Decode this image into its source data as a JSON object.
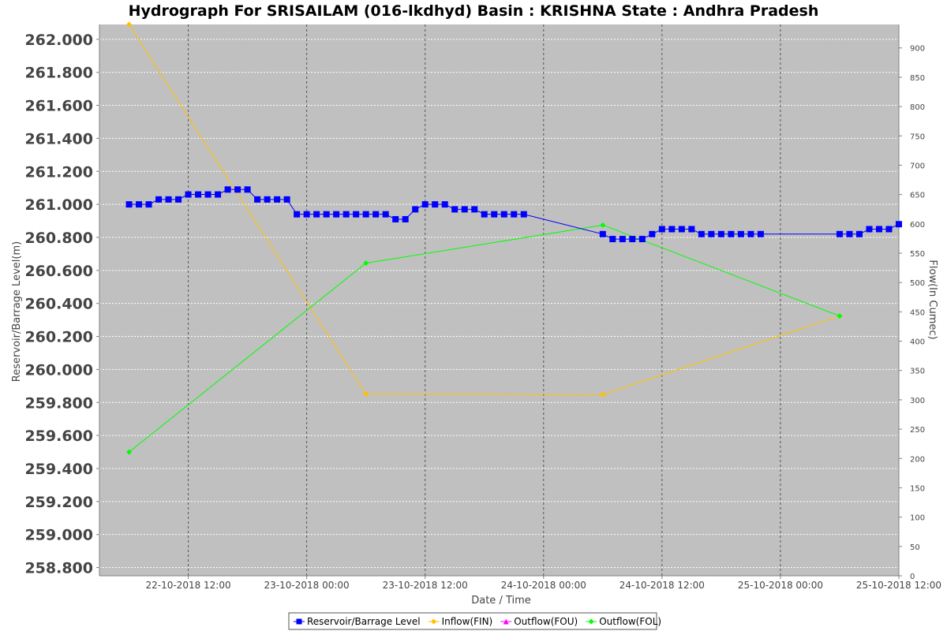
{
  "chart_data": {
    "type": "line",
    "title": "Hydrograph For SRISAILAM (016-lkdhyd) Basin : KRISHNA State : Andhra Pradesh",
    "xlabel": "Date / Time",
    "ylabel_left": "Reservoir/Barrage Level(m)",
    "ylabel_right": "Flow(In Cumec)",
    "x_range": [
      "2018-10-22T03:00",
      "2018-10-25T12:00"
    ],
    "x_ticks": [
      {
        "t": "2018-10-22T12:00",
        "label": "22-10-2018 12:00"
      },
      {
        "t": "2018-10-23T00:00",
        "label": "23-10-2018 00:00"
      },
      {
        "t": "2018-10-23T12:00",
        "label": "23-10-2018 12:00"
      },
      {
        "t": "2018-10-24T00:00",
        "label": "24-10-2018 00:00"
      },
      {
        "t": "2018-10-24T12:00",
        "label": "24-10-2018 12:00"
      },
      {
        "t": "2018-10-25T00:00",
        "label": "25-10-2018 00:00"
      },
      {
        "t": "2018-10-25T12:00",
        "label": "25-10-2018 12:00"
      }
    ],
    "y_left": {
      "min": 258.75,
      "max": 262.09,
      "ticks": [
        "262.000",
        "261.800",
        "261.600",
        "261.400",
        "261.200",
        "261.000",
        "260.800",
        "260.600",
        "260.400",
        "260.200",
        "260.000",
        "259.800",
        "259.600",
        "259.400",
        "259.200",
        "259.000",
        "258.800"
      ]
    },
    "y_right": {
      "min": 0,
      "max": 940,
      "ticks": [
        "900",
        "850",
        "800",
        "750",
        "700",
        "650",
        "600",
        "550",
        "500",
        "450",
        "400",
        "350",
        "300",
        "250",
        "200",
        "150",
        "100",
        "50",
        "0"
      ]
    },
    "grid": true,
    "legend_position": "bottom",
    "series": [
      {
        "name": "Reservoir/Barrage Level",
        "axis": "left",
        "color": "#0000ff",
        "marker": "square",
        "points": [
          [
            "2018-10-22T06:00",
            261.0
          ],
          [
            "2018-10-22T07:00",
            261.0
          ],
          [
            "2018-10-22T08:00",
            261.0
          ],
          [
            "2018-10-22T09:00",
            261.03
          ],
          [
            "2018-10-22T10:00",
            261.03
          ],
          [
            "2018-10-22T11:00",
            261.03
          ],
          [
            "2018-10-22T12:00",
            261.06
          ],
          [
            "2018-10-22T13:00",
            261.06
          ],
          [
            "2018-10-22T14:00",
            261.06
          ],
          [
            "2018-10-22T15:00",
            261.06
          ],
          [
            "2018-10-22T16:00",
            261.09
          ],
          [
            "2018-10-22T17:00",
            261.09
          ],
          [
            "2018-10-22T18:00",
            261.09
          ],
          [
            "2018-10-22T19:00",
            261.03
          ],
          [
            "2018-10-22T20:00",
            261.03
          ],
          [
            "2018-10-22T21:00",
            261.03
          ],
          [
            "2018-10-22T22:00",
            261.03
          ],
          [
            "2018-10-22T23:00",
            260.94
          ],
          [
            "2018-10-23T00:00",
            260.94
          ],
          [
            "2018-10-23T01:00",
            260.94
          ],
          [
            "2018-10-23T02:00",
            260.94
          ],
          [
            "2018-10-23T03:00",
            260.94
          ],
          [
            "2018-10-23T04:00",
            260.94
          ],
          [
            "2018-10-23T05:00",
            260.94
          ],
          [
            "2018-10-23T06:00",
            260.94
          ],
          [
            "2018-10-23T07:00",
            260.94
          ],
          [
            "2018-10-23T08:00",
            260.94
          ],
          [
            "2018-10-23T09:00",
            260.91
          ],
          [
            "2018-10-23T10:00",
            260.91
          ],
          [
            "2018-10-23T11:00",
            260.97
          ],
          [
            "2018-10-23T12:00",
            261.0
          ],
          [
            "2018-10-23T13:00",
            261.0
          ],
          [
            "2018-10-23T14:00",
            261.0
          ],
          [
            "2018-10-23T15:00",
            260.97
          ],
          [
            "2018-10-23T16:00",
            260.97
          ],
          [
            "2018-10-23T17:00",
            260.97
          ],
          [
            "2018-10-23T18:00",
            260.94
          ],
          [
            "2018-10-23T19:00",
            260.94
          ],
          [
            "2018-10-23T20:00",
            260.94
          ],
          [
            "2018-10-23T21:00",
            260.94
          ],
          [
            "2018-10-23T22:00",
            260.94
          ],
          [
            "2018-10-24T06:00",
            260.82
          ],
          [
            "2018-10-24T07:00",
            260.79
          ],
          [
            "2018-10-24T08:00",
            260.79
          ],
          [
            "2018-10-24T09:00",
            260.79
          ],
          [
            "2018-10-24T10:00",
            260.79
          ],
          [
            "2018-10-24T11:00",
            260.82
          ],
          [
            "2018-10-24T12:00",
            260.85
          ],
          [
            "2018-10-24T13:00",
            260.85
          ],
          [
            "2018-10-24T14:00",
            260.85
          ],
          [
            "2018-10-24T15:00",
            260.85
          ],
          [
            "2018-10-24T16:00",
            260.82
          ],
          [
            "2018-10-24T17:00",
            260.82
          ],
          [
            "2018-10-24T18:00",
            260.82
          ],
          [
            "2018-10-24T19:00",
            260.82
          ],
          [
            "2018-10-24T20:00",
            260.82
          ],
          [
            "2018-10-24T21:00",
            260.82
          ],
          [
            "2018-10-24T22:00",
            260.82
          ],
          [
            "2018-10-25T06:00",
            260.82
          ],
          [
            "2018-10-25T07:00",
            260.82
          ],
          [
            "2018-10-25T08:00",
            260.82
          ],
          [
            "2018-10-25T09:00",
            260.85
          ],
          [
            "2018-10-25T10:00",
            260.85
          ],
          [
            "2018-10-25T11:00",
            260.85
          ],
          [
            "2018-10-25T12:00",
            260.88
          ]
        ]
      },
      {
        "name": "Inflow(FIN)",
        "axis": "right",
        "color": "#ffc000",
        "marker": "diamond",
        "points": [
          [
            "2018-10-22T06:00",
            940
          ],
          [
            "2018-10-23T06:00",
            310
          ],
          [
            "2018-10-24T06:00",
            309
          ],
          [
            "2018-10-25T06:00",
            443
          ]
        ]
      },
      {
        "name": "Outflow(FOU)",
        "axis": "right",
        "color": "#ff00ff",
        "marker": "triangle",
        "points": []
      },
      {
        "name": "Outflow(FOL)",
        "axis": "right",
        "color": "#00ff00",
        "marker": "diamond",
        "points": [
          [
            "2018-10-22T06:00",
            211
          ],
          [
            "2018-10-23T06:00",
            533
          ],
          [
            "2018-10-24T06:00",
            598
          ],
          [
            "2018-10-25T06:00",
            443
          ]
        ]
      }
    ]
  }
}
